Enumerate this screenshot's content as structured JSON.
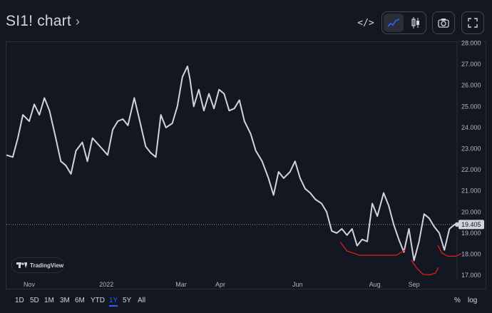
{
  "header": {
    "title": "SI1! chart",
    "title_chevron": "›",
    "embed_label": "</>",
    "icons": [
      "code-icon",
      "line-chart-icon",
      "candlestick-icon",
      "camera-icon",
      "fullscreen-icon"
    ]
  },
  "brand": {
    "label": "TradingView"
  },
  "colors": {
    "background": "#131722",
    "line": "#d1d4dc",
    "annotation": "#e01e1e",
    "active": "#2962ff"
  },
  "range_bar": {
    "ranges": [
      "1D",
      "5D",
      "1M",
      "3M",
      "6M",
      "YTD",
      "1Y",
      "5Y",
      "All"
    ],
    "active": "1Y",
    "percent_label": "%",
    "log_label": "log"
  },
  "chart_data": {
    "type": "line",
    "y_ticks": [
      "28.000",
      "27.000",
      "26.000",
      "25.000",
      "24.000",
      "23.000",
      "22.000",
      "21.000",
      "20.000",
      "19.000",
      "18.000",
      "17.000"
    ],
    "x_ticks": [
      "Nov",
      "2022",
      "Mar",
      "Apr",
      "Jun",
      "Aug",
      "Sep"
    ],
    "last_price_label": "19.405",
    "last_price": 19.405,
    "ylim": [
      16.8,
      28.05
    ],
    "x_range": [
      "2021-10-14",
      "2022-10-05"
    ],
    "x": [
      "2021-10-14",
      "2021-10-19",
      "2021-10-23",
      "2021-10-27",
      "2021-11-01",
      "2021-11-05",
      "2021-11-09",
      "2021-11-13",
      "2021-11-17",
      "2021-11-22",
      "2021-11-26",
      "2021-11-30",
      "2021-12-04",
      "2021-12-08",
      "2021-12-13",
      "2021-12-17",
      "2021-12-21",
      "2021-12-27",
      "2022-01-02",
      "2022-01-06",
      "2022-01-10",
      "2022-01-14",
      "2022-01-18",
      "2022-01-23",
      "2022-01-27",
      "2022-02-01",
      "2022-02-05",
      "2022-02-09",
      "2022-02-13",
      "2022-02-17",
      "2022-02-22",
      "2022-02-26",
      "2022-03-02",
      "2022-03-06",
      "2022-03-08",
      "2022-03-11",
      "2022-03-15",
      "2022-03-19",
      "2022-03-23",
      "2022-03-27",
      "2022-03-31",
      "2022-04-04",
      "2022-04-08",
      "2022-04-12",
      "2022-04-16",
      "2022-04-20",
      "2022-04-25",
      "2022-04-29",
      "2022-05-04",
      "2022-05-09",
      "2022-05-13",
      "2022-05-17",
      "2022-05-21",
      "2022-05-26",
      "2022-05-30",
      "2022-06-03",
      "2022-06-07",
      "2022-06-11",
      "2022-06-15",
      "2022-06-20",
      "2022-06-24",
      "2022-06-28",
      "2022-07-02",
      "2022-07-06",
      "2022-07-10",
      "2022-07-14",
      "2022-07-18",
      "2022-07-22",
      "2022-07-26",
      "2022-07-30",
      "2022-08-03",
      "2022-08-08",
      "2022-08-12",
      "2022-08-16",
      "2022-08-20",
      "2022-08-24",
      "2022-08-28",
      "2022-09-01",
      "2022-09-05",
      "2022-09-09",
      "2022-09-13",
      "2022-09-17",
      "2022-09-21",
      "2022-09-25",
      "2022-09-29",
      "2022-10-03",
      "2022-10-05"
    ],
    "values": [
      22.7,
      22.6,
      23.5,
      24.6,
      24.3,
      25.1,
      24.6,
      25.4,
      24.8,
      23.5,
      22.4,
      22.2,
      21.8,
      22.9,
      23.3,
      22.4,
      23.5,
      23.1,
      22.7,
      23.9,
      24.3,
      24.4,
      24.1,
      25.4,
      24.4,
      23.1,
      22.8,
      22.6,
      24.6,
      24.0,
      24.2,
      25.0,
      26.4,
      26.9,
      26.3,
      25.0,
      25.8,
      24.8,
      25.6,
      24.9,
      25.8,
      25.6,
      24.8,
      24.9,
      25.3,
      24.3,
      23.7,
      22.9,
      22.4,
      21.6,
      20.8,
      21.9,
      21.6,
      21.9,
      22.4,
      21.6,
      21.1,
      20.9,
      20.6,
      20.4,
      20.0,
      19.1,
      19.0,
      19.2,
      18.9,
      19.2,
      18.4,
      18.7,
      18.6,
      20.4,
      19.8,
      20.9,
      20.3,
      19.4,
      18.7,
      18.1,
      19.2,
      17.7,
      18.6,
      19.9,
      19.7,
      19.3,
      19.0,
      18.2,
      19.2,
      19.4,
      19.41
    ],
    "annotations": [
      {
        "label": "curve-1",
        "x": [
          "2022-07-05",
          "2022-07-10",
          "2022-07-20",
          "2022-08-04",
          "2022-08-18",
          "2022-08-25"
        ],
        "y": [
          18.55,
          18.15,
          17.95,
          17.95,
          17.95,
          18.2
        ]
      },
      {
        "label": "curve-2",
        "x": [
          "2022-08-30",
          "2022-09-03",
          "2022-09-08",
          "2022-09-13",
          "2022-09-18",
          "2022-09-20"
        ],
        "y": [
          17.7,
          17.35,
          17.05,
          17.02,
          17.1,
          17.35
        ]
      },
      {
        "label": "curve-3",
        "x": [
          "2022-09-20",
          "2022-09-23",
          "2022-09-28",
          "2022-10-04",
          "2022-10-08"
        ],
        "y": [
          18.4,
          18.05,
          17.9,
          17.9,
          18.02
        ]
      }
    ]
  }
}
